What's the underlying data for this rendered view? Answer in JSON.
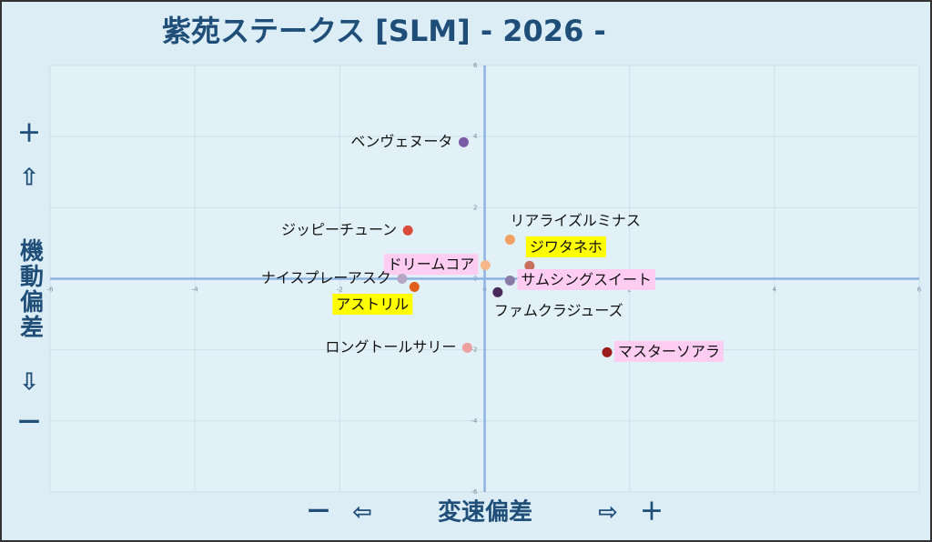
{
  "chart_data": {
    "type": "scatter",
    "title": "紫苑ステークス [SLM]  - 2026 -",
    "x_label_parts": [
      "ー",
      "⇦",
      "変速偏差",
      "⇨",
      "＋"
    ],
    "y_label_parts": [
      "＋",
      "⇧",
      "機動偏差",
      "⇩",
      "ー"
    ],
    "xlim": [
      -6,
      6
    ],
    "ylim": [
      -6,
      6
    ],
    "xticks": [
      -6,
      -4,
      -2,
      0,
      2,
      4,
      6
    ],
    "yticks": [
      -6,
      -4,
      -2,
      0,
      2,
      4,
      6
    ],
    "grid": true,
    "points": [
      {
        "label": "ベンヴェヌータ",
        "x": -0.29,
        "y": 3.84,
        "color": "#7b5aa6",
        "label_side": "left"
      },
      {
        "label": "ジッピーチューン",
        "x": -1.06,
        "y": 1.36,
        "color": "#d94a3a",
        "label_side": "left"
      },
      {
        "label": "リアライズルミナス",
        "x": 0.35,
        "y": 1.1,
        "color": "#f0a060",
        "label_side": "above-right"
      },
      {
        "label": "ドリームコア",
        "x": 0.01,
        "y": 0.38,
        "color": "#f6b88a",
        "label_side": "left",
        "highlight": "#ffccf2"
      },
      {
        "label": "ジワタネホ",
        "x": 0.62,
        "y": 0.36,
        "color": "#c9705c",
        "label_side": "above-right",
        "highlight": "#ffff00"
      },
      {
        "label": "ナイスプレーアスク",
        "x": -1.14,
        "y": 0.0,
        "color": "#b8a6c6",
        "label_side": "left"
      },
      {
        "label": "サムシングスイート",
        "x": 0.35,
        "y": -0.05,
        "color": "#8a7aa8",
        "label_side": "right",
        "highlight": "#ffccf2"
      },
      {
        "label": "アストリル",
        "x": -0.97,
        "y": -0.23,
        "color": "#e0601a",
        "label_side": "below-left",
        "highlight": "#ffff00"
      },
      {
        "label": "ファムクラジューズ",
        "x": 0.18,
        "y": -0.38,
        "color": "#4a2a5a",
        "label_side": "below"
      },
      {
        "label": "ロングトールサリー",
        "x": -0.24,
        "y": -1.94,
        "color": "#eca0a0",
        "label_side": "left"
      },
      {
        "label": "マスターソアラ",
        "x": 1.69,
        "y": -2.07,
        "color": "#9c1c1c",
        "label_side": "right",
        "highlight": "#ffccf2"
      }
    ]
  }
}
